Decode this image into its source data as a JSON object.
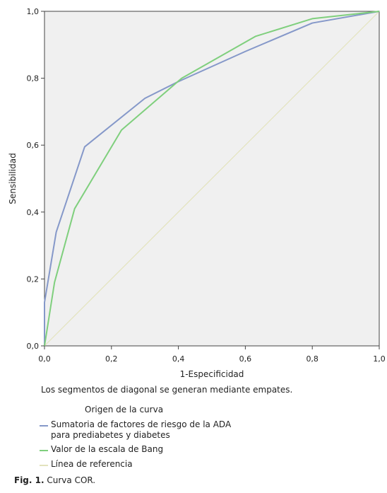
{
  "chart_data": {
    "type": "line",
    "xlabel": "1-Especificidad",
    "ylabel": "Sensibilidad",
    "xlim": [
      0,
      1
    ],
    "ylim": [
      0,
      1
    ],
    "x_ticks": [
      "0,0",
      "0,2",
      "0,4",
      "0,6",
      "0,8",
      "1,0"
    ],
    "y_ticks": [
      "0,0",
      "0,2",
      "0,4",
      "0,6",
      "0,8",
      "1,0"
    ],
    "grid": false,
    "plot_background": "#f0f0f0",
    "series": [
      {
        "name": "Sumatoria de factores de riesgo de la ADA para prediabetes y diabetes",
        "color": "#8598c9",
        "x": [
          0.0,
          0.0,
          0.035,
          0.12,
          0.3,
          0.4,
          0.6,
          0.8,
          1.0
        ],
        "y": [
          0.0,
          0.13,
          0.34,
          0.595,
          0.74,
          0.79,
          0.88,
          0.965,
          1.0
        ]
      },
      {
        "name": "Valor de la escala de Bang",
        "color": "#7fcf7d",
        "x": [
          0.0,
          0.03,
          0.09,
          0.23,
          0.41,
          0.63,
          0.8,
          1.0
        ],
        "y": [
          0.0,
          0.19,
          0.41,
          0.645,
          0.8,
          0.925,
          0.978,
          1.0
        ]
      },
      {
        "name": "Línea de referencia",
        "color": "#e3e3bd",
        "x": [
          0.0,
          1.0
        ],
        "y": [
          0.0,
          1.0
        ]
      }
    ]
  },
  "note": "Los segmentos de diagonal se generan mediante empates.",
  "legend_title": "Origen de la curva",
  "legend_items": [
    {
      "label": "Sumatoria de factores de riesgo de la ADA para prediabetes y diabetes",
      "color": "#8598c9"
    },
    {
      "label": "Valor de la escala de Bang",
      "color": "#7fcf7d"
    },
    {
      "label": "Línea de referencia",
      "color": "#e3e3bd"
    }
  ],
  "caption": {
    "label": "Fig. 1.",
    "text": "Curva COR."
  }
}
